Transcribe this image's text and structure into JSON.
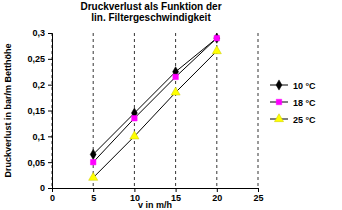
{
  "chart_data": {
    "type": "line",
    "title": "Druckverlust als Funktion der\nlin. Filtergeschwindigkeit",
    "x_label": "v in m/h",
    "y_label": "Druckverlust in bar/m Betthöhe",
    "x": [
      5,
      10,
      15,
      20
    ],
    "series": [
      {
        "name": "10 °C",
        "color": "#000000",
        "marker": "diamond",
        "values": [
          0.065,
          0.145,
          0.225,
          0.29
        ]
      },
      {
        "name": "18 °C",
        "color": "#ff00ff",
        "marker": "square",
        "values": [
          0.05,
          0.135,
          0.215,
          0.29
        ]
      },
      {
        "name": "25 °C",
        "color": "#ffff00",
        "marker": "triangle",
        "values": [
          0.02,
          0.1,
          0.185,
          0.265
        ]
      }
    ],
    "xlim": [
      0,
      25
    ],
    "xticks": [
      0,
      5,
      10,
      15,
      20,
      25
    ],
    "ylim": [
      0,
      0.3
    ],
    "yticks": [
      0,
      {
        "value": 0.05,
        "label": "0,05"
      },
      {
        "value": 0.1,
        "label": "0,1"
      },
      {
        "value": 0.15,
        "label": "0,15"
      },
      {
        "value": 0.2,
        "label": "0,2"
      },
      {
        "value": 0.25,
        "label": "0,25"
      },
      {
        "value": 0.3,
        "label": "0,3"
      }
    ],
    "grid": "x",
    "legend": "right"
  }
}
